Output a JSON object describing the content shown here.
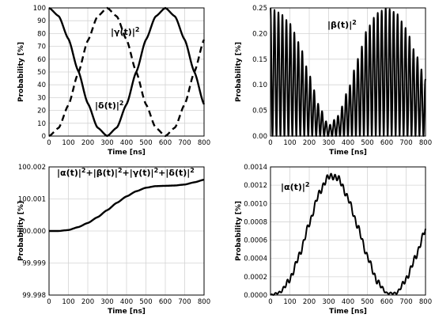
{
  "chart_data": [
    {
      "type": "line",
      "xlabel": "Time [ns]",
      "ylabel": "Probability [%]",
      "xlim": [
        0,
        800
      ],
      "ylim": [
        0,
        100
      ],
      "xticks": [
        "0",
        "100",
        "200",
        "300",
        "400",
        "500",
        "600",
        "700",
        "800"
      ],
      "yticks": [
        "0",
        "10",
        "20",
        "30",
        "40",
        "50",
        "60",
        "70",
        "80",
        "90",
        "100"
      ],
      "grid": true,
      "annotations": [
        "|γ(t)|²",
        "|δ(t)|²"
      ],
      "series": [
        {
          "name": "|δ(t)|²",
          "style": "solid",
          "x": [
            0,
            50,
            100,
            150,
            200,
            250,
            300,
            350,
            400,
            450,
            500,
            550,
            600,
            650,
            700,
            750,
            800
          ],
          "y": [
            100,
            93.6,
            75.8,
            51.0,
            25.5,
            6.6,
            0,
            6.6,
            24.8,
            50,
            75.2,
            93.4,
            100,
            93.4,
            75.2,
            50,
            24.8
          ]
        },
        {
          "name": "|γ(t)|²",
          "style": "dashed",
          "x": [
            0,
            50,
            100,
            150,
            200,
            250,
            300,
            350,
            400,
            450,
            500,
            550,
            600,
            650,
            700,
            750,
            800
          ],
          "y": [
            0,
            6.4,
            24.2,
            49.0,
            74.5,
            93.4,
            100,
            93.4,
            75.2,
            50,
            24.8,
            6.6,
            0,
            6.6,
            24.8,
            50,
            75.2
          ]
        }
      ]
    },
    {
      "type": "line",
      "xlabel": "Time [ns]",
      "ylabel": "Probability [%]",
      "xlim": [
        0,
        800
      ],
      "ylim": [
        0,
        0.25
      ],
      "xticks": [
        "0",
        "100",
        "200",
        "300",
        "400",
        "500",
        "600",
        "700",
        "800"
      ],
      "yticks": [
        "0.00",
        "0.05",
        "0.10",
        "0.15",
        "0.20",
        "0.25"
      ],
      "grid": true,
      "annotations": [
        "|β(t)|²"
      ],
      "series": [
        {
          "name": "|β(t)|²",
          "style": "solid",
          "oscillation_period_ns": 20.5,
          "x": [
            0,
            50,
            100,
            150,
            200,
            250,
            300,
            350,
            400,
            450,
            500,
            550,
            600,
            650,
            700,
            750,
            800
          ],
          "y": [
            0.25,
            0.24,
            0.22,
            0.18,
            0.12,
            0.06,
            0.02,
            0.04,
            0.09,
            0.15,
            0.21,
            0.24,
            0.25,
            0.24,
            0.21,
            0.16,
            0.11
          ]
        }
      ]
    },
    {
      "type": "line",
      "xlabel": "Time [ns]",
      "ylabel": "Probability [%]",
      "xlim": [
        0,
        800
      ],
      "ylim": [
        99.998,
        100.002
      ],
      "xticks": [
        "0",
        "100",
        "200",
        "300",
        "400",
        "500",
        "600",
        "700",
        "800"
      ],
      "yticks": [
        "99.998",
        "99.999",
        "100.000",
        "100.001",
        "100.002"
      ],
      "grid": true,
      "annotations": [
        "|α(t)|²+|β(t)|²+|γ(t)|²+|δ(t)|²"
      ],
      "series": [
        {
          "name": "|α(t)|²+|β(t)|²+|γ(t)|²+|δ(t)|²",
          "style": "solid",
          "x": [
            0,
            50,
            100,
            150,
            200,
            250,
            300,
            350,
            400,
            450,
            500,
            550,
            600,
            650,
            700,
            750,
            800
          ],
          "y": [
            100.0,
            100.0,
            100.00003,
            100.00012,
            100.00025,
            100.00043,
            100.00065,
            100.00088,
            100.00108,
            100.00124,
            100.00135,
            100.0014,
            100.00141,
            100.00142,
            100.00145,
            100.00152,
            100.0016
          ]
        }
      ]
    },
    {
      "type": "line",
      "xlabel": "Time [ns]",
      "ylabel": "Probability [%]",
      "xlim": [
        0,
        800
      ],
      "ylim": [
        0,
        0.0014
      ],
      "xticks": [
        "0",
        "100",
        "200",
        "300",
        "400",
        "500",
        "600",
        "700",
        "800"
      ],
      "yticks": [
        "0.0000",
        "0.0002",
        "0.0004",
        "0.0006",
        "0.0008",
        "0.0010",
        "0.0012",
        "0.0014"
      ],
      "grid": true,
      "annotations": [
        "|α(t)|²"
      ],
      "series": [
        {
          "name": "|α(t)|²",
          "style": "solid",
          "oscillation_period_ns": 20.5,
          "x": [
            0,
            50,
            100,
            150,
            200,
            250,
            300,
            350,
            400,
            450,
            500,
            550,
            600,
            650,
            700,
            750,
            800
          ],
          "y": [
            0,
            3e-05,
            0.00017,
            0.00044,
            0.00078,
            0.00111,
            0.0013,
            0.00128,
            0.00106,
            0.00075,
            0.00042,
            0.00015,
            2e-05,
            2e-05,
            0.00017,
            0.00042,
            0.00072
          ]
        }
      ]
    }
  ]
}
